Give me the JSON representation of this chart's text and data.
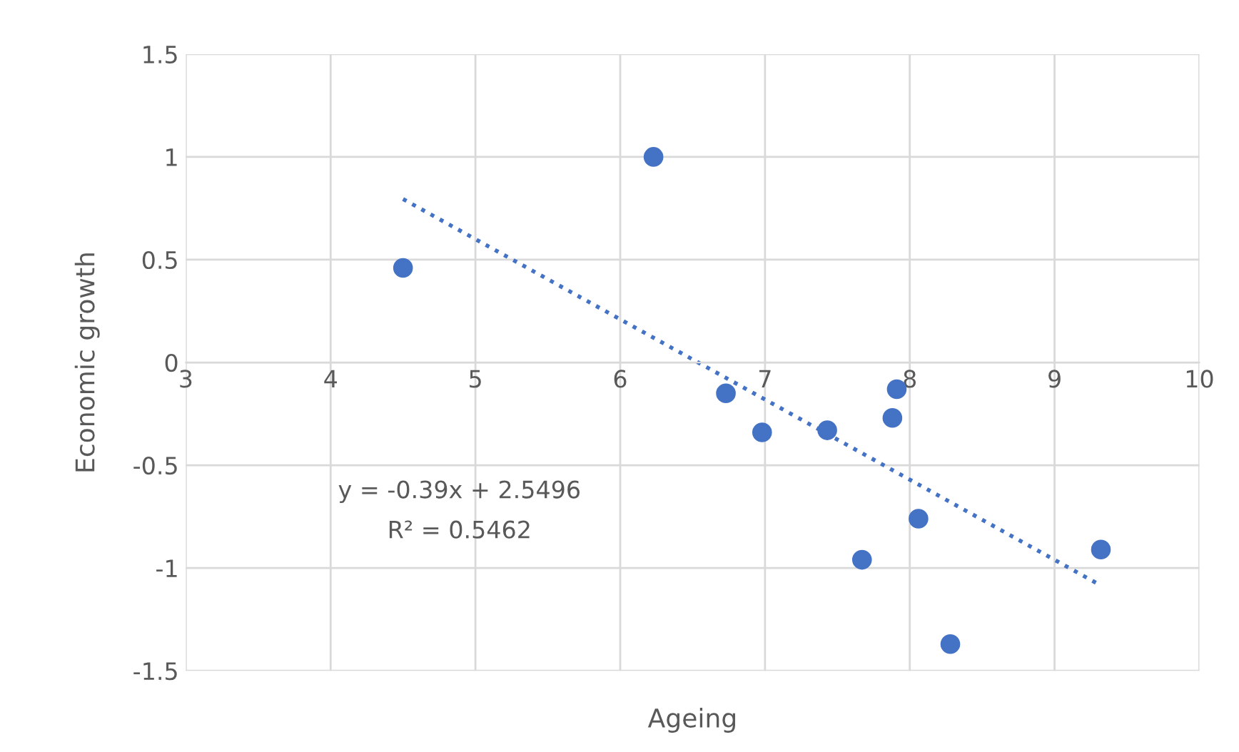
{
  "chart_data": {
    "type": "scatter",
    "xlabel": "Ageing",
    "ylabel": "Economic growth",
    "xlim": [
      3,
      10
    ],
    "xticks": [
      3,
      4,
      5,
      6,
      7,
      8,
      9,
      10
    ],
    "ylim": [
      -1.5,
      1.5
    ],
    "yticks": [
      -1.5,
      -1,
      -0.5,
      0,
      0.5,
      1,
      1.5
    ],
    "grid": true,
    "legend": false,
    "marker": "circle",
    "series": [
      {
        "color": "#4472c4",
        "x": [
          4.5,
          6.23,
          6.73,
          6.98,
          7.43,
          7.67,
          7.91,
          7.88,
          8.06,
          8.28,
          9.32
        ],
        "values": [
          0.46,
          1.0,
          -0.15,
          -0.34,
          -0.33,
          -0.96,
          -0.13,
          -0.27,
          -0.76,
          -1.37,
          -0.91
        ]
      },
      {
        "type": "line",
        "color": "#4472c4",
        "line_style": "dotted",
        "marker": "none",
        "x": [
          4.5,
          9.32
        ],
        "values": [
          0.795,
          -1.085
        ]
      }
    ],
    "annotations": [
      "y = -0.39x + 2.5496",
      "R² = 0.5462"
    ]
  }
}
